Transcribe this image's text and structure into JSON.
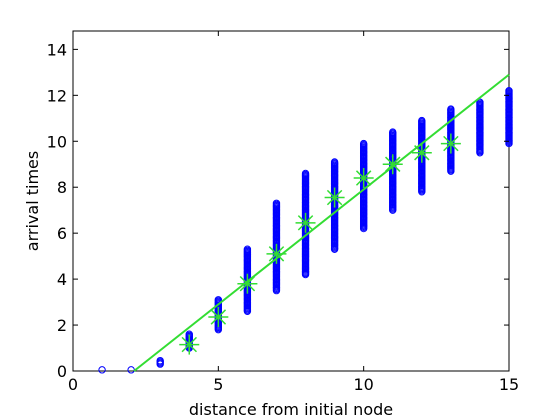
{
  "chart_data": {
    "type": "scatter",
    "title": "",
    "xlabel": "distance from initial node",
    "ylabel": "arrival times",
    "xlim": [
      0,
      15
    ],
    "ylim": [
      0,
      14.8
    ],
    "xticks": [
      0,
      5,
      10,
      15
    ],
    "yticks": [
      0,
      2,
      4,
      6,
      8,
      10,
      12,
      14
    ],
    "grid": false,
    "legend": "none",
    "series": [
      {
        "marker": "circle",
        "color": "#0000ff",
        "groups": [
          {
            "x": 1,
            "ymin": 0.05,
            "ymax": 0.05
          },
          {
            "x": 2,
            "ymin": 0.05,
            "ymax": 0.05
          },
          {
            "x": 3,
            "ymin": 0.3,
            "ymax": 0.45
          },
          {
            "x": 4,
            "ymin": 1.0,
            "ymax": 1.6
          },
          {
            "x": 5,
            "ymin": 1.8,
            "ymax": 3.1
          },
          {
            "x": 6,
            "ymin": 2.6,
            "ymax": 5.3
          },
          {
            "x": 7,
            "ymin": 3.5,
            "ymax": 7.3
          },
          {
            "x": 8,
            "ymin": 4.2,
            "ymax": 8.6
          },
          {
            "x": 9,
            "ymin": 5.3,
            "ymax": 9.1
          },
          {
            "x": 10,
            "ymin": 6.2,
            "ymax": 9.9
          },
          {
            "x": 11,
            "ymin": 7.0,
            "ymax": 10.4
          },
          {
            "x": 12,
            "ymin": 7.8,
            "ymax": 10.9
          },
          {
            "x": 13,
            "ymin": 8.7,
            "ymax": 11.4
          },
          {
            "x": 14,
            "ymin": 9.5,
            "ymax": 11.7
          },
          {
            "x": 15,
            "ymin": 9.9,
            "ymax": 12.2
          }
        ]
      },
      {
        "marker": "asterisk",
        "color": "#33dd33",
        "x": [
          4,
          5,
          6,
          7,
          8,
          9,
          10,
          11,
          12,
          13
        ],
        "y": [
          1.15,
          2.35,
          3.8,
          5.1,
          6.45,
          7.55,
          8.4,
          9.0,
          9.5,
          9.9
        ]
      },
      {
        "marker": "line",
        "color": "#33dd33",
        "x": [
          2.1,
          15
        ],
        "y": [
          0.0,
          12.9
        ]
      }
    ]
  }
}
